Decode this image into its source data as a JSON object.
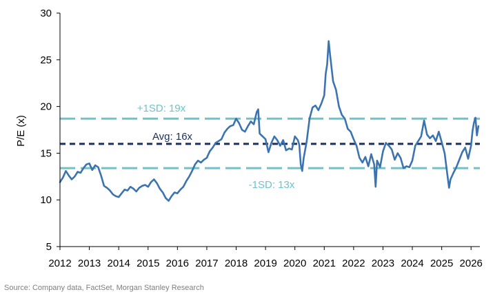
{
  "chart_data": {
    "type": "line",
    "xlabel": "",
    "ylabel": "P/E (x)",
    "xlim": [
      2012,
      2026.3
    ],
    "ylim": [
      5,
      30
    ],
    "x_ticks": [
      2012,
      2013,
      2014,
      2015,
      2016,
      2017,
      2018,
      2019,
      2020,
      2021,
      2022,
      2023,
      2024,
      2025,
      2026
    ],
    "y_ticks": [
      5,
      10,
      15,
      20,
      25,
      30
    ],
    "grid": false,
    "series": [
      {
        "color": "#3b73b0",
        "x": [
          2012.0,
          2012.1,
          2012.2,
          2012.3,
          2012.4,
          2012.5,
          2012.6,
          2012.7,
          2012.8,
          2012.9,
          2013.0,
          2013.1,
          2013.2,
          2013.3,
          2013.4,
          2013.5,
          2013.6,
          2013.7,
          2013.8,
          2013.9,
          2014.0,
          2014.1,
          2014.2,
          2014.3,
          2014.4,
          2014.5,
          2014.6,
          2014.7,
          2014.8,
          2014.9,
          2015.0,
          2015.1,
          2015.2,
          2015.3,
          2015.4,
          2015.5,
          2015.6,
          2015.7,
          2015.8,
          2015.9,
          2016.0,
          2016.1,
          2016.2,
          2016.3,
          2016.4,
          2016.5,
          2016.6,
          2016.7,
          2016.8,
          2016.9,
          2017.0,
          2017.1,
          2017.2,
          2017.3,
          2017.4,
          2017.5,
          2017.6,
          2017.7,
          2017.8,
          2017.9,
          2018.0,
          2018.1,
          2018.2,
          2018.3,
          2018.4,
          2018.5,
          2018.6,
          2018.7,
          2018.75,
          2018.8,
          2018.9,
          2019.0,
          2019.1,
          2019.2,
          2019.3,
          2019.4,
          2019.5,
          2019.6,
          2019.7,
          2019.8,
          2019.9,
          2020.0,
          2020.1,
          2020.15,
          2020.2,
          2020.25,
          2020.3,
          2020.4,
          2020.5,
          2020.6,
          2020.7,
          2020.8,
          2020.9,
          2021.0,
          2021.05,
          2021.1,
          2021.15,
          2021.2,
          2021.3,
          2021.4,
          2021.5,
          2021.6,
          2021.7,
          2021.8,
          2021.9,
          2022.0,
          2022.1,
          2022.2,
          2022.3,
          2022.4,
          2022.5,
          2022.6,
          2022.7,
          2022.75,
          2022.8,
          2022.9,
          2023.0,
          2023.1,
          2023.2,
          2023.3,
          2023.4,
          2023.5,
          2023.6,
          2023.7,
          2023.8,
          2023.9,
          2024.0,
          2024.1,
          2024.2,
          2024.3,
          2024.4,
          2024.5,
          2024.6,
          2024.7,
          2024.8,
          2024.9,
          2025.0,
          2025.1,
          2025.2,
          2025.25,
          2025.3,
          2025.4,
          2025.5,
          2025.6,
          2025.7,
          2025.8,
          2025.9,
          2026.0,
          2026.05,
          2026.1,
          2026.15,
          2026.2,
          2026.25
        ],
        "values": [
          11.9,
          12.4,
          13.1,
          12.6,
          12.2,
          12.5,
          13.0,
          12.9,
          13.4,
          13.8,
          13.9,
          13.2,
          13.7,
          13.5,
          12.6,
          11.5,
          11.3,
          11.0,
          10.6,
          10.4,
          10.3,
          10.7,
          11.1,
          11.0,
          11.4,
          11.2,
          10.9,
          11.3,
          11.5,
          11.6,
          11.4,
          11.9,
          12.2,
          11.8,
          11.2,
          10.8,
          10.2,
          9.9,
          10.4,
          10.8,
          10.7,
          11.1,
          11.4,
          12.0,
          12.5,
          13.1,
          13.8,
          14.2,
          14.0,
          14.3,
          14.5,
          15.2,
          15.6,
          16.1,
          16.3,
          16.5,
          17.2,
          17.6,
          17.9,
          18.0,
          18.7,
          18.2,
          17.5,
          17.3,
          17.9,
          18.4,
          18.1,
          19.4,
          19.7,
          17.1,
          16.8,
          16.5,
          15.1,
          16.1,
          16.8,
          16.4,
          15.8,
          16.4,
          15.3,
          15.5,
          15.4,
          16.8,
          16.4,
          15.9,
          13.8,
          13.1,
          14.5,
          16.2,
          18.7,
          19.9,
          20.1,
          19.6,
          20.3,
          21.2,
          23.5,
          24.5,
          27.0,
          25.5,
          22.7,
          21.8,
          20.0,
          19.1,
          18.7,
          17.6,
          17.3,
          16.5,
          15.8,
          14.5,
          14.0,
          14.6,
          13.6,
          14.9,
          13.8,
          11.4,
          14.2,
          13.5,
          15.2,
          16.1,
          15.8,
          15.4,
          14.3,
          15.0,
          14.5,
          13.4,
          13.6,
          13.5,
          14.2,
          15.8,
          16.3,
          16.8,
          18.5,
          17.0,
          16.6,
          16.9,
          16.3,
          17.3,
          16.2,
          15.0,
          12.5,
          11.3,
          12.2,
          12.9,
          13.5,
          14.3,
          15.1,
          15.6,
          14.4,
          15.8,
          17.4,
          18.3,
          18.8,
          16.9,
          17.9
        ]
      }
    ],
    "reference_lines": [
      {
        "label": "+1SD: 19x",
        "value": 18.7,
        "color": "#6cc3cc",
        "style": "long-dash"
      },
      {
        "label": "Avg: 16x",
        "value": 16.0,
        "color": "#1b2f5e",
        "style": "short-dash"
      },
      {
        "label": "-1SD: 13x",
        "value": 13.4,
        "color": "#6cc3cc",
        "style": "long-dash"
      }
    ]
  },
  "source_text": "Source: Company data, FactSet, Morgan Stanley Research"
}
